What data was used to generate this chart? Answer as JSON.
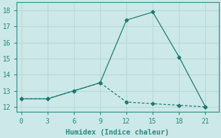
{
  "xlabel": "Humidex (Indice chaleur)",
  "bg_color": "#cce8e8",
  "grid_color": "#b8d8d8",
  "line_color": "#1a7a6e",
  "spine_color": "#2a8a7e",
  "line1_x": [
    0,
    3,
    6,
    9,
    12,
    15,
    18,
    21
  ],
  "line1_y": [
    12.5,
    12.5,
    13.0,
    13.5,
    17.4,
    17.9,
    15.1,
    12.0
  ],
  "line2_x": [
    0,
    3,
    6,
    9,
    12,
    15,
    18,
    21
  ],
  "line2_y": [
    12.5,
    12.5,
    13.0,
    13.5,
    12.3,
    12.2,
    12.1,
    12.0
  ],
  "xlim": [
    -0.5,
    22.5
  ],
  "ylim": [
    11.7,
    18.5
  ],
  "xticks": [
    0,
    3,
    6,
    9,
    12,
    15,
    18,
    21
  ],
  "yticks": [
    12,
    13,
    14,
    15,
    16,
    17,
    18
  ],
  "xlabel_fontsize": 7.5,
  "tick_fontsize": 7
}
